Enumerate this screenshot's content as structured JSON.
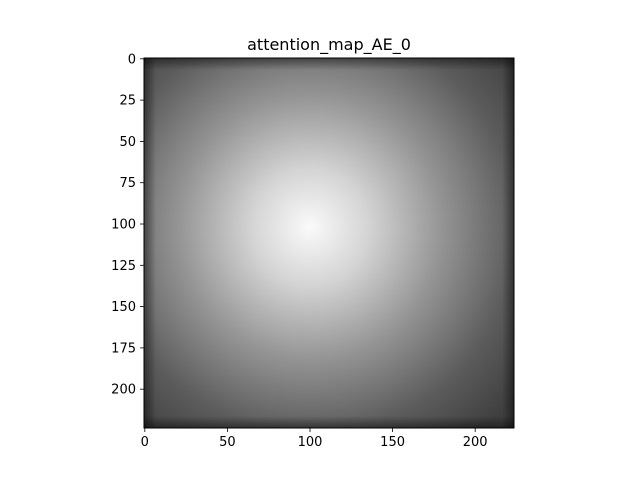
{
  "chart_data": {
    "type": "heatmap",
    "title": "attention_map_AE_0",
    "colormap": "gray",
    "xlim": [
      -0.5,
      223.5
    ],
    "ylim": [
      223.5,
      -0.5
    ],
    "x_ticks": [
      0,
      50,
      100,
      150,
      200
    ],
    "y_ticks": [
      0,
      25,
      50,
      75,
      100,
      125,
      150,
      175,
      200
    ],
    "y_axis_inverted": true,
    "grid": false,
    "image_size": [
      224,
      224
    ],
    "peak_center": {
      "x": 100,
      "y": 102
    },
    "intensity": {
      "center": 0.98,
      "at_radius_50": 0.83,
      "at_radius_100": 0.58,
      "edge_inner": 0.36,
      "edge_outer": 0.25
    },
    "color_range": [
      "#3a3a3a",
      "#fafafa"
    ]
  }
}
